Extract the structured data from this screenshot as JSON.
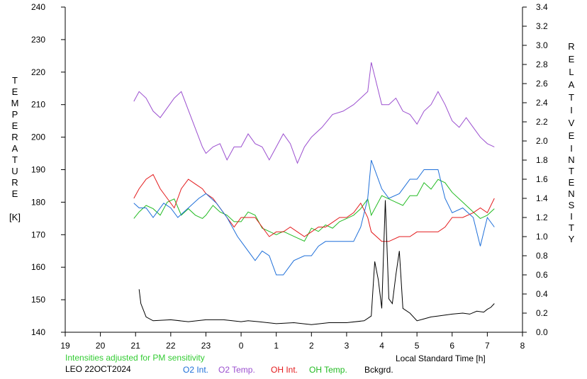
{
  "chart_data": {
    "type": "line",
    "xlabel": "Local Standard Time [h]",
    "ylabel_left": "TEMPERATURE [K]",
    "ylabel_right": "RELATIVE INTENSITY",
    "y_left_range": [
      140,
      240
    ],
    "y_right_range": [
      0.0,
      3.4
    ],
    "x_range_hours_since_19": [
      0,
      13
    ],
    "x_tick_labels": [
      "19",
      "20",
      "21",
      "22",
      "23",
      "0",
      "1",
      "2",
      "3",
      "4",
      "5",
      "6",
      "7",
      "8"
    ],
    "y_left_ticks": [
      "140",
      "150",
      "160",
      "170",
      "180",
      "190",
      "200",
      "210",
      "220",
      "230",
      "240"
    ],
    "y_right_ticks": [
      "0.0",
      "0.2",
      "0.4",
      "0.6",
      "0.8",
      "1.0",
      "1.2",
      "1.4",
      "1.6",
      "1.8",
      "2.0",
      "2.2",
      "2.4",
      "2.6",
      "2.8",
      "3.0",
      "3.2",
      "3.4"
    ],
    "grid": false,
    "note": "Intensities adjusted for PM sensitivity",
    "station": "LEO 22OCT2024",
    "series": [
      {
        "name": "O2 Int.",
        "color": "#1e6fd9",
        "axis": "right",
        "x": [
          1.95,
          2.1,
          2.3,
          2.5,
          2.8,
          3.0,
          3.2,
          3.5,
          3.8,
          4.0,
          4.3,
          4.6,
          4.9,
          5.0,
          5.2,
          5.4,
          5.6,
          5.8,
          6.0,
          6.2,
          6.5,
          6.8,
          7.0,
          7.2,
          7.4,
          7.6,
          8.0,
          8.2,
          8.4,
          8.6,
          8.7,
          9.0,
          9.2,
          9.5,
          9.8,
          10.0,
          10.2,
          10.6,
          10.8,
          11.0,
          11.3,
          11.6,
          11.8,
          12.0,
          12.2
        ],
        "y": [
          1.35,
          1.3,
          1.3,
          1.2,
          1.35,
          1.3,
          1.2,
          1.3,
          1.4,
          1.45,
          1.35,
          1.2,
          1.0,
          0.95,
          0.85,
          0.75,
          0.85,
          0.8,
          0.6,
          0.6,
          0.75,
          0.8,
          0.8,
          0.9,
          0.95,
          0.95,
          0.95,
          0.95,
          1.1,
          1.4,
          1.8,
          1.5,
          1.4,
          1.45,
          1.6,
          1.6,
          1.7,
          1.7,
          1.4,
          1.25,
          1.3,
          1.2,
          0.9,
          1.2,
          1.1
        ]
      },
      {
        "name": "O2 Temp.",
        "color": "#9b4fcf",
        "axis": "left",
        "x": [
          1.95,
          2.1,
          2.3,
          2.5,
          2.7,
          2.9,
          3.1,
          3.3,
          3.9,
          4.0,
          4.2,
          4.4,
          4.6,
          4.8,
          5.0,
          5.2,
          5.4,
          5.6,
          5.8,
          6.0,
          6.2,
          6.4,
          6.6,
          6.8,
          7.0,
          7.3,
          7.6,
          7.9,
          8.2,
          8.4,
          8.6,
          8.7,
          9.0,
          9.2,
          9.4,
          9.6,
          9.8,
          10.0,
          10.2,
          10.4,
          10.6,
          10.8,
          11.0,
          11.2,
          11.4,
          11.6,
          11.8,
          12.0,
          12.2
        ],
        "y": [
          211,
          214,
          212,
          208,
          206,
          209,
          212,
          214,
          197,
          195,
          197,
          198,
          193,
          197,
          197,
          201,
          198,
          197,
          193,
          197,
          201,
          198,
          192,
          197,
          200,
          203,
          207,
          208,
          210,
          212,
          214,
          223,
          210,
          210,
          212,
          208,
          207,
          204,
          208,
          210,
          214,
          210,
          205,
          203,
          206,
          203,
          200,
          198,
          197
        ]
      },
      {
        "name": "OH Int.",
        "color": "#e31a1c",
        "axis": "right",
        "x": [
          1.95,
          2.1,
          2.3,
          2.5,
          2.7,
          2.9,
          3.1,
          3.3,
          3.5,
          3.7,
          3.9,
          4.0,
          4.2,
          4.4,
          4.6,
          4.8,
          5.0,
          5.2,
          5.4,
          5.6,
          5.8,
          6.0,
          6.2,
          6.4,
          6.6,
          6.8,
          7.0,
          7.2,
          7.4,
          7.6,
          7.8,
          8.0,
          8.2,
          8.4,
          8.6,
          8.7,
          9.0,
          9.2,
          9.5,
          9.8,
          10.0,
          10.3,
          10.6,
          10.8,
          11.0,
          11.3,
          11.6,
          11.8,
          12.0,
          12.2
        ],
        "y": [
          1.4,
          1.5,
          1.6,
          1.65,
          1.5,
          1.4,
          1.3,
          1.5,
          1.6,
          1.55,
          1.5,
          1.45,
          1.4,
          1.3,
          1.2,
          1.1,
          1.2,
          1.2,
          1.2,
          1.1,
          1.0,
          1.05,
          1.05,
          1.1,
          1.05,
          1.0,
          1.05,
          1.1,
          1.1,
          1.15,
          1.2,
          1.2,
          1.25,
          1.35,
          1.2,
          1.05,
          0.95,
          0.95,
          1.0,
          1.0,
          1.05,
          1.05,
          1.05,
          1.1,
          1.2,
          1.2,
          1.25,
          1.3,
          1.25,
          1.4
        ]
      },
      {
        "name": "OH Temp.",
        "color": "#22bb22",
        "axis": "left",
        "x": [
          1.95,
          2.1,
          2.3,
          2.5,
          2.7,
          2.9,
          3.1,
          3.3,
          3.5,
          3.7,
          3.9,
          4.0,
          4.2,
          4.4,
          4.6,
          4.8,
          5.0,
          5.2,
          5.4,
          5.6,
          5.8,
          6.0,
          6.2,
          6.4,
          6.6,
          6.8,
          7.0,
          7.2,
          7.4,
          7.6,
          7.8,
          8.0,
          8.2,
          8.4,
          8.6,
          8.7,
          9.0,
          9.2,
          9.4,
          9.6,
          9.8,
          10.0,
          10.2,
          10.4,
          10.6,
          10.8,
          11.0,
          11.3,
          11.6,
          11.8,
          12.0,
          12.2
        ],
        "y": [
          175,
          177,
          179,
          178,
          176,
          180,
          181,
          176,
          178,
          176,
          175,
          176,
          179,
          177,
          176,
          174,
          174,
          177,
          176,
          172,
          171,
          170,
          171,
          170,
          169,
          168,
          172,
          171,
          173,
          172,
          174,
          175,
          176,
          178,
          181,
          176,
          182,
          181,
          180,
          179,
          182,
          182,
          186,
          184,
          187,
          186,
          183,
          180,
          177,
          175,
          176,
          178
        ]
      },
      {
        "name": "Bckgrd.",
        "color": "#000000",
        "axis": "right",
        "x": [
          2.1,
          2.15,
          2.3,
          2.5,
          3.0,
          3.5,
          4.0,
          4.5,
          5.0,
          5.2,
          5.5,
          6.0,
          6.5,
          7.0,
          7.5,
          8.0,
          8.5,
          8.7,
          8.8,
          8.9,
          9.0,
          9.1,
          9.2,
          9.3,
          9.4,
          9.5,
          9.6,
          9.8,
          10.0,
          10.2,
          10.4,
          10.6,
          10.8,
          11.0,
          11.3,
          11.5,
          11.7,
          11.9,
          12.0,
          12.1,
          12.2
        ],
        "y": [
          0.45,
          0.3,
          0.16,
          0.12,
          0.13,
          0.11,
          0.13,
          0.13,
          0.11,
          0.12,
          0.11,
          0.09,
          0.1,
          0.08,
          0.1,
          0.1,
          0.12,
          0.17,
          0.74,
          0.55,
          0.25,
          1.38,
          0.35,
          0.3,
          0.6,
          0.85,
          0.25,
          0.2,
          0.12,
          0.14,
          0.16,
          0.17,
          0.18,
          0.19,
          0.2,
          0.19,
          0.22,
          0.21,
          0.24,
          0.26,
          0.3
        ]
      }
    ]
  }
}
